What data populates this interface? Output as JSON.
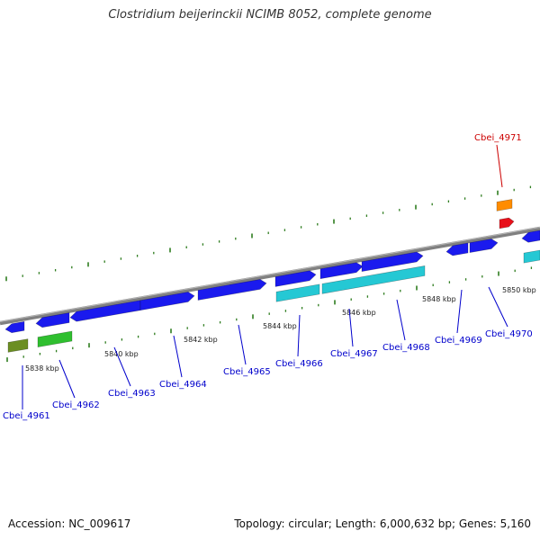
{
  "title": "Clostridium beijerinckii NCIMB 8052, complete genome",
  "footer": {
    "accession": "Accession: NC_009617",
    "summary": "Topology: circular; Length: 6,000,632 bp; Genes: 5,160"
  },
  "colors": {
    "backbone": "#808080",
    "gene_blue": "#1a1aee",
    "gene_cyan": "#25c8d4",
    "gene_green": "#2fbf2f",
    "gene_olive": "#6b8e23",
    "gene_orange": "#ff8c00",
    "gene_red": "#e8101a",
    "tick_green": "#2e7d1f",
    "label_blue": "#0000cc",
    "label_red": "#cc0000"
  },
  "coordinate_ticks": [
    "5838 kbp",
    "5840 kbp",
    "5842 kbp",
    "5844 kbp",
    "5846 kbp",
    "5848 kbp",
    "5850 kbp"
  ],
  "gene_labels": [
    "Cbei_4961",
    "Cbei_4962",
    "Cbei_4963",
    "Cbei_4964",
    "Cbei_4965",
    "Cbei_4966",
    "Cbei_4967",
    "Cbei_4968",
    "Cbei_4969",
    "Cbei_4970",
    "Cbei_4971"
  ]
}
